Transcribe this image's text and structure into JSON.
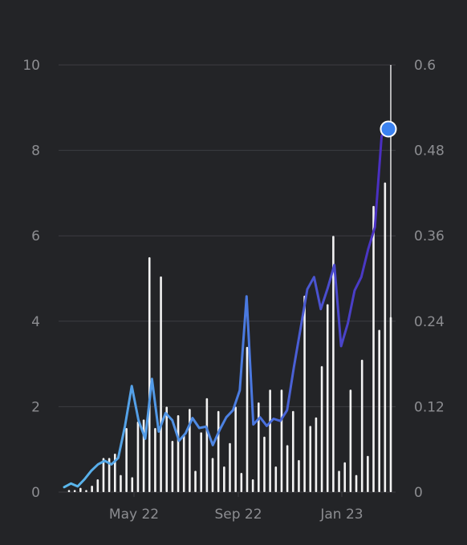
{
  "chart_data": {
    "type": "bar+line",
    "title": "",
    "xlabel": "",
    "ylabel": "",
    "y_left": {
      "ticks": [
        "0",
        "2",
        "4",
        "6",
        "8",
        "10"
      ],
      "range": [
        0,
        10
      ]
    },
    "y_right": {
      "ticks": [
        "0",
        "0.12",
        "0.24",
        "0.36",
        "0.48",
        "0.6"
      ],
      "range": [
        0,
        0.6
      ]
    },
    "x_ticks": [
      "May 22",
      "Sep 22",
      "Jan 23"
    ],
    "grid": "horizontal",
    "legend": "none",
    "colors": {
      "background": "#232427",
      "bars": "#f2f2f2",
      "grid": "#3c3d42",
      "tick_text": "#8c8d91",
      "line_start": "#5ab8ec",
      "line_mid": "#4a78e0",
      "line_end": "#4a2bbf",
      "marker": "#3b82f0"
    },
    "series": [
      {
        "type": "bar",
        "axis": "left",
        "values": [
          0.05,
          0.05,
          0.1,
          0.05,
          0.15,
          0.3,
          0.8,
          0.8,
          0.9,
          0.4,
          1.5,
          0.35,
          1.65,
          1.7,
          5.5,
          1.5,
          5.05,
          2.0,
          1.2,
          1.8,
          1.35,
          1.95,
          0.5,
          1.4,
          2.2,
          0.8,
          1.9,
          0.6,
          1.15,
          2.0,
          0.45,
          3.4,
          0.3,
          2.1,
          1.3,
          2.4,
          0.6,
          2.4,
          1.1,
          1.9,
          0.75,
          4.6,
          1.55,
          1.75,
          2.95,
          4.4,
          6.0,
          0.5,
          0.7,
          2.4,
          0.4,
          3.1,
          0.85,
          6.7,
          3.8,
          7.25,
          4.1
        ],
        "highlight": {
          "index": 56,
          "value": 10
        }
      },
      {
        "type": "line",
        "axis": "right",
        "values": [
          0.007,
          0.012,
          0.008,
          0.018,
          0.03,
          0.039,
          0.044,
          0.039,
          0.048,
          0.093,
          0.149,
          0.101,
          0.075,
          0.159,
          0.085,
          0.111,
          0.101,
          0.072,
          0.083,
          0.104,
          0.09,
          0.092,
          0.066,
          0.087,
          0.105,
          0.115,
          0.143,
          0.275,
          0.095,
          0.105,
          0.093,
          0.103,
          0.1,
          0.115,
          0.175,
          0.23,
          0.285,
          0.302,
          0.257,
          0.286,
          0.319,
          0.205,
          0.237,
          0.283,
          0.302,
          0.341,
          0.372,
          0.5,
          0.51
        ],
        "marker_last": true
      }
    ]
  }
}
